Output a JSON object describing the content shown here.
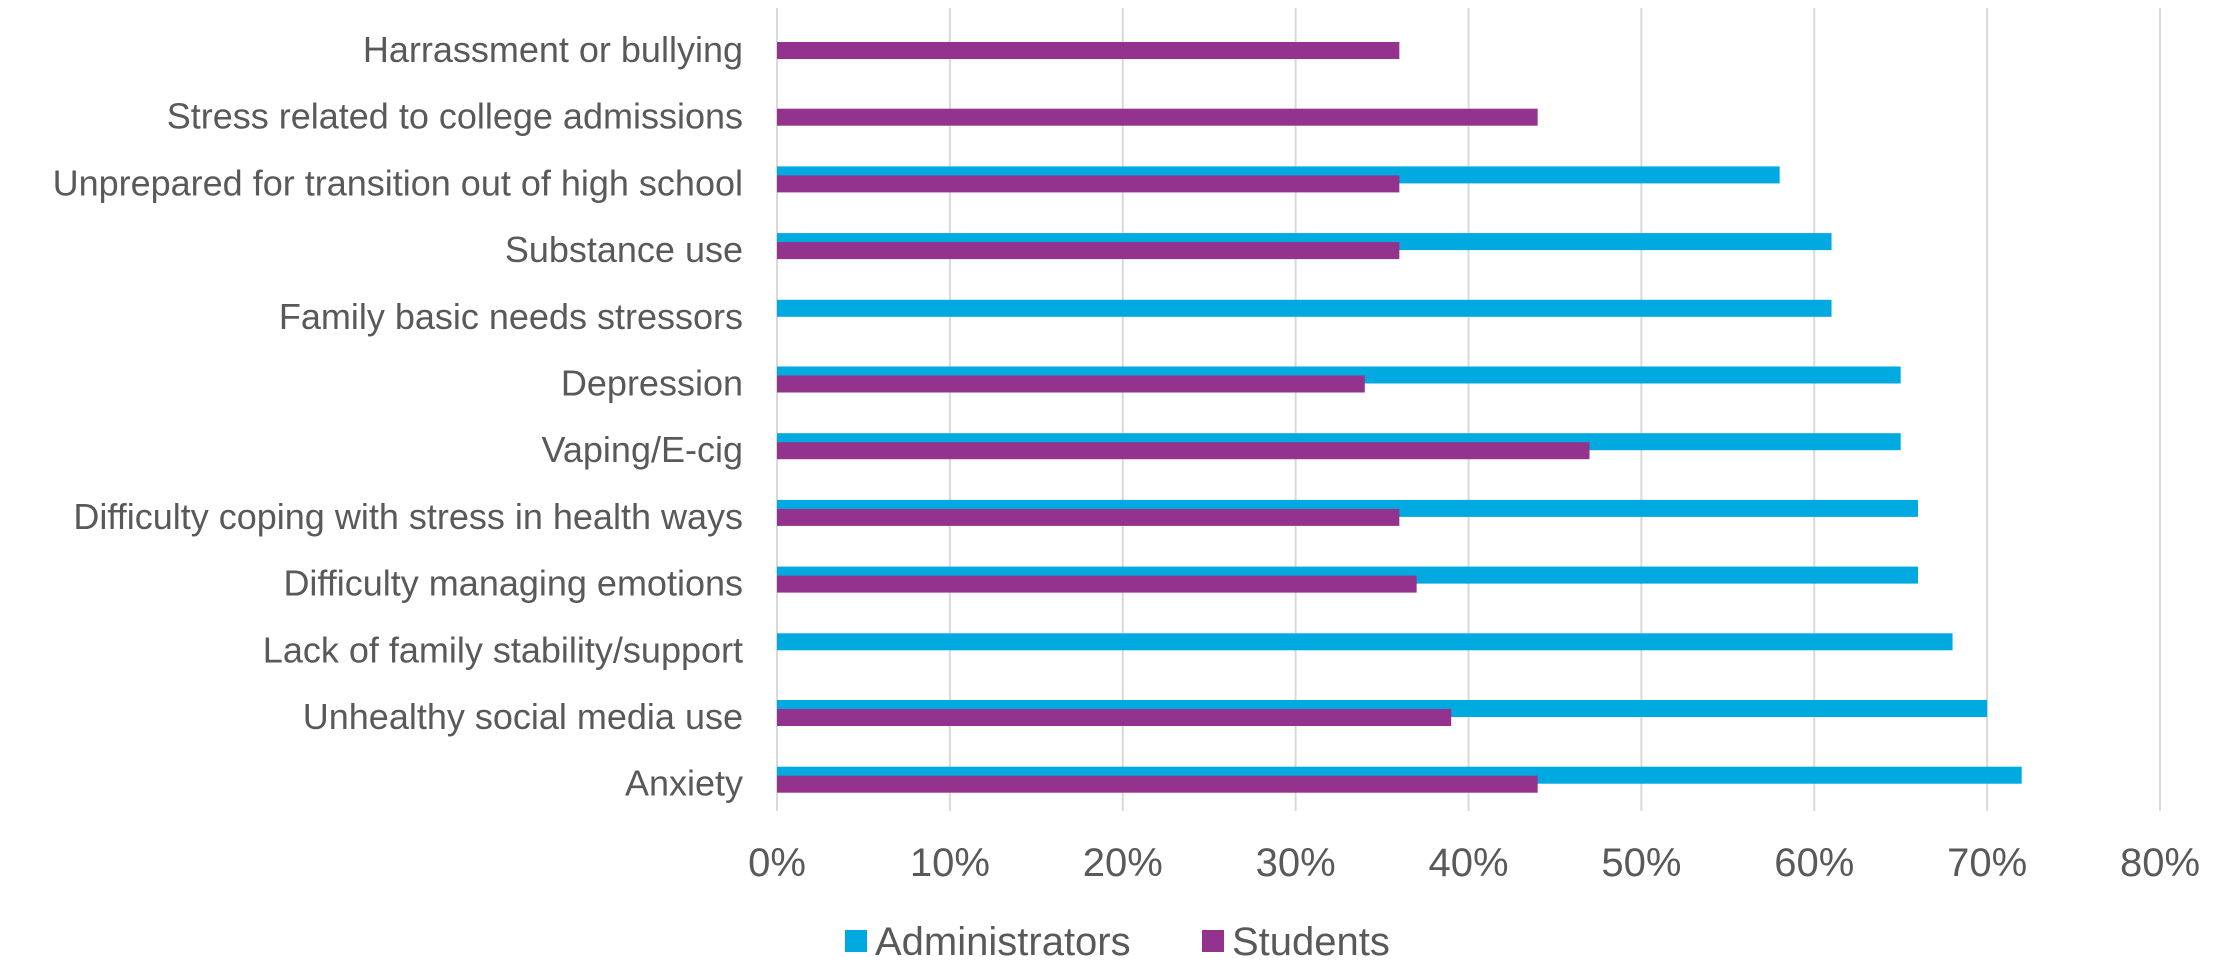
{
  "chart_data": {
    "type": "bar",
    "orientation": "horizontal",
    "categories": [
      "Harrassment or bullying",
      "Stress related to college admissions",
      "Unprepared for transition out of high school",
      "Substance use",
      "Family basic needs stressors",
      "Depression",
      "Vaping/E-cig",
      "Difficulty coping with stress in health ways",
      "Difficulty managing emotions",
      "Lack of family stability/support",
      "Unhealthy social media use",
      "Anxiety"
    ],
    "series": [
      {
        "name": "Administrators",
        "color": "#00A9E0",
        "values": [
          null,
          null,
          58,
          61,
          61,
          65,
          65,
          66,
          66,
          68,
          70,
          72
        ]
      },
      {
        "name": "Students",
        "color": "#93338D",
        "values": [
          36,
          44,
          36,
          36,
          null,
          34,
          47,
          36,
          37,
          null,
          39,
          44
        ]
      }
    ],
    "xlim": [
      0,
      80
    ],
    "x_ticks": [
      "0%",
      "10%",
      "20%",
      "30%",
      "40%",
      "50%",
      "60%",
      "70%",
      "80%"
    ],
    "unit": "%",
    "grid": "vertical",
    "legend_position": "bottom",
    "title": "",
    "xlabel": "",
    "ylabel": ""
  }
}
